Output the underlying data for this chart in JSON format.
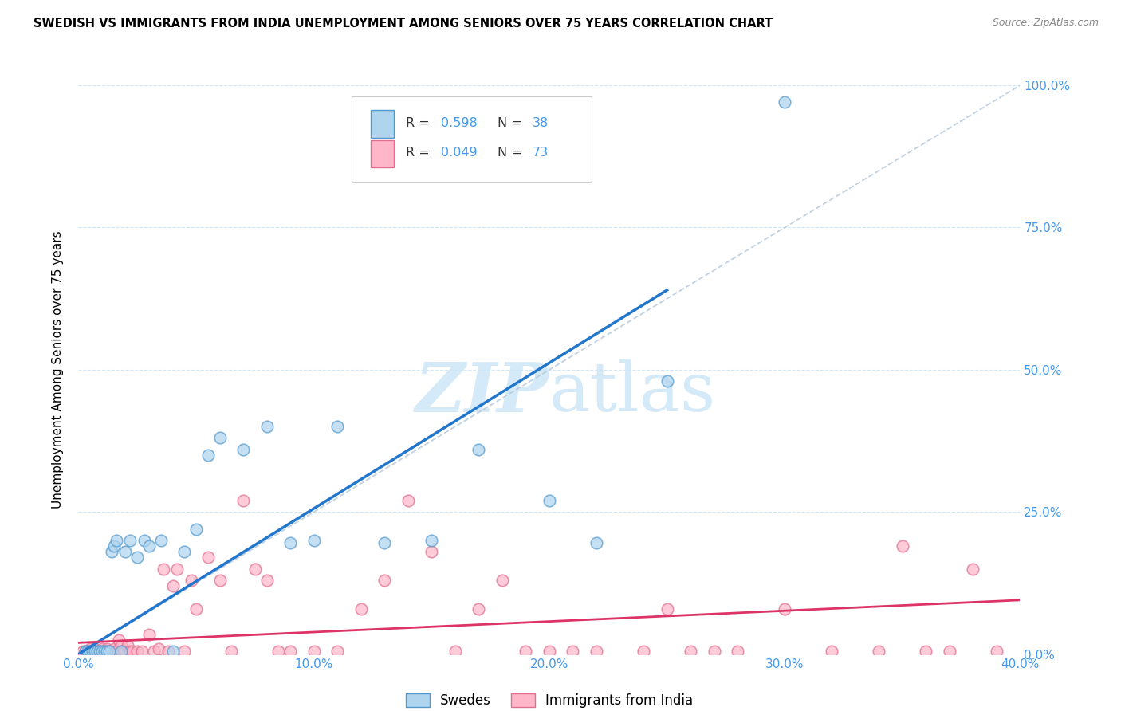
{
  "title": "SWEDISH VS IMMIGRANTS FROM INDIA UNEMPLOYMENT AMONG SENIORS OVER 75 YEARS CORRELATION CHART",
  "source": "Source: ZipAtlas.com",
  "ylabel": "Unemployment Among Seniors over 75 years",
  "xlim": [
    0.0,
    0.4
  ],
  "ylim": [
    0.0,
    1.0
  ],
  "xticks": [
    0.0,
    0.1,
    0.2,
    0.3,
    0.4
  ],
  "xtick_labels": [
    "0.0%",
    "10.0%",
    "20.0%",
    "30.0%",
    "40.0%"
  ],
  "yticks": [
    0.0,
    0.25,
    0.5,
    0.75,
    1.0
  ],
  "ytick_labels": [
    "0.0%",
    "25.0%",
    "50.0%",
    "75.0%",
    "100.0%"
  ],
  "blue_fill": "#aed4ee",
  "blue_edge": "#5599cc",
  "pink_fill": "#ffb6c8",
  "pink_edge": "#e07090",
  "blue_line": "#2277cc",
  "pink_line": "#dd3366",
  "ref_line_color": "#bbccdd",
  "watermark_color": "#d5eaf8",
  "r_blue": "0.598",
  "n_blue": "38",
  "r_pink": "0.049",
  "n_pink": "73",
  "label_blue": "Swedes",
  "label_pink": "Immigrants from India",
  "tick_color": "#4499ee",
  "blue_x": [
    0.003,
    0.004,
    0.005,
    0.006,
    0.007,
    0.008,
    0.009,
    0.01,
    0.011,
    0.012,
    0.013,
    0.014,
    0.015,
    0.016,
    0.018,
    0.02,
    0.022,
    0.025,
    0.028,
    0.03,
    0.035,
    0.04,
    0.045,
    0.05,
    0.055,
    0.06,
    0.07,
    0.08,
    0.09,
    0.1,
    0.11,
    0.13,
    0.15,
    0.17,
    0.2,
    0.22,
    0.25,
    0.3
  ],
  "blue_y": [
    0.005,
    0.005,
    0.005,
    0.005,
    0.005,
    0.005,
    0.005,
    0.005,
    0.005,
    0.005,
    0.005,
    0.18,
    0.19,
    0.2,
    0.005,
    0.18,
    0.2,
    0.17,
    0.2,
    0.19,
    0.2,
    0.005,
    0.18,
    0.22,
    0.35,
    0.38,
    0.36,
    0.4,
    0.195,
    0.2,
    0.4,
    0.195,
    0.2,
    0.36,
    0.27,
    0.195,
    0.48,
    0.97
  ],
  "pink_x": [
    0.002,
    0.003,
    0.004,
    0.005,
    0.005,
    0.006,
    0.007,
    0.007,
    0.008,
    0.009,
    0.01,
    0.01,
    0.011,
    0.012,
    0.012,
    0.013,
    0.014,
    0.015,
    0.015,
    0.016,
    0.017,
    0.018,
    0.019,
    0.02,
    0.021,
    0.022,
    0.023,
    0.025,
    0.027,
    0.03,
    0.032,
    0.034,
    0.036,
    0.038,
    0.04,
    0.042,
    0.045,
    0.048,
    0.05,
    0.055,
    0.06,
    0.065,
    0.07,
    0.075,
    0.08,
    0.085,
    0.09,
    0.1,
    0.11,
    0.12,
    0.13,
    0.14,
    0.15,
    0.16,
    0.17,
    0.18,
    0.19,
    0.2,
    0.22,
    0.24,
    0.25,
    0.27,
    0.28,
    0.3,
    0.32,
    0.34,
    0.36,
    0.37,
    0.38,
    0.39,
    0.21,
    0.26,
    0.35
  ],
  "pink_y": [
    0.005,
    0.005,
    0.005,
    0.005,
    0.01,
    0.005,
    0.005,
    0.01,
    0.005,
    0.005,
    0.005,
    0.01,
    0.005,
    0.005,
    0.01,
    0.005,
    0.005,
    0.005,
    0.01,
    0.005,
    0.025,
    0.015,
    0.005,
    0.005,
    0.015,
    0.005,
    0.005,
    0.005,
    0.005,
    0.035,
    0.005,
    0.01,
    0.15,
    0.005,
    0.12,
    0.15,
    0.005,
    0.13,
    0.08,
    0.17,
    0.13,
    0.005,
    0.27,
    0.15,
    0.13,
    0.005,
    0.005,
    0.005,
    0.005,
    0.08,
    0.13,
    0.27,
    0.18,
    0.005,
    0.08,
    0.13,
    0.005,
    0.005,
    0.005,
    0.005,
    0.08,
    0.005,
    0.005,
    0.08,
    0.005,
    0.005,
    0.005,
    0.005,
    0.15,
    0.005,
    0.005,
    0.005,
    0.19
  ],
  "blue_reg": [
    0.0,
    0.0,
    0.25,
    0.64
  ],
  "pink_reg": [
    0.0,
    0.02,
    0.4,
    0.095
  ],
  "ref_line": [
    0.0,
    0.0,
    0.4,
    1.0
  ]
}
